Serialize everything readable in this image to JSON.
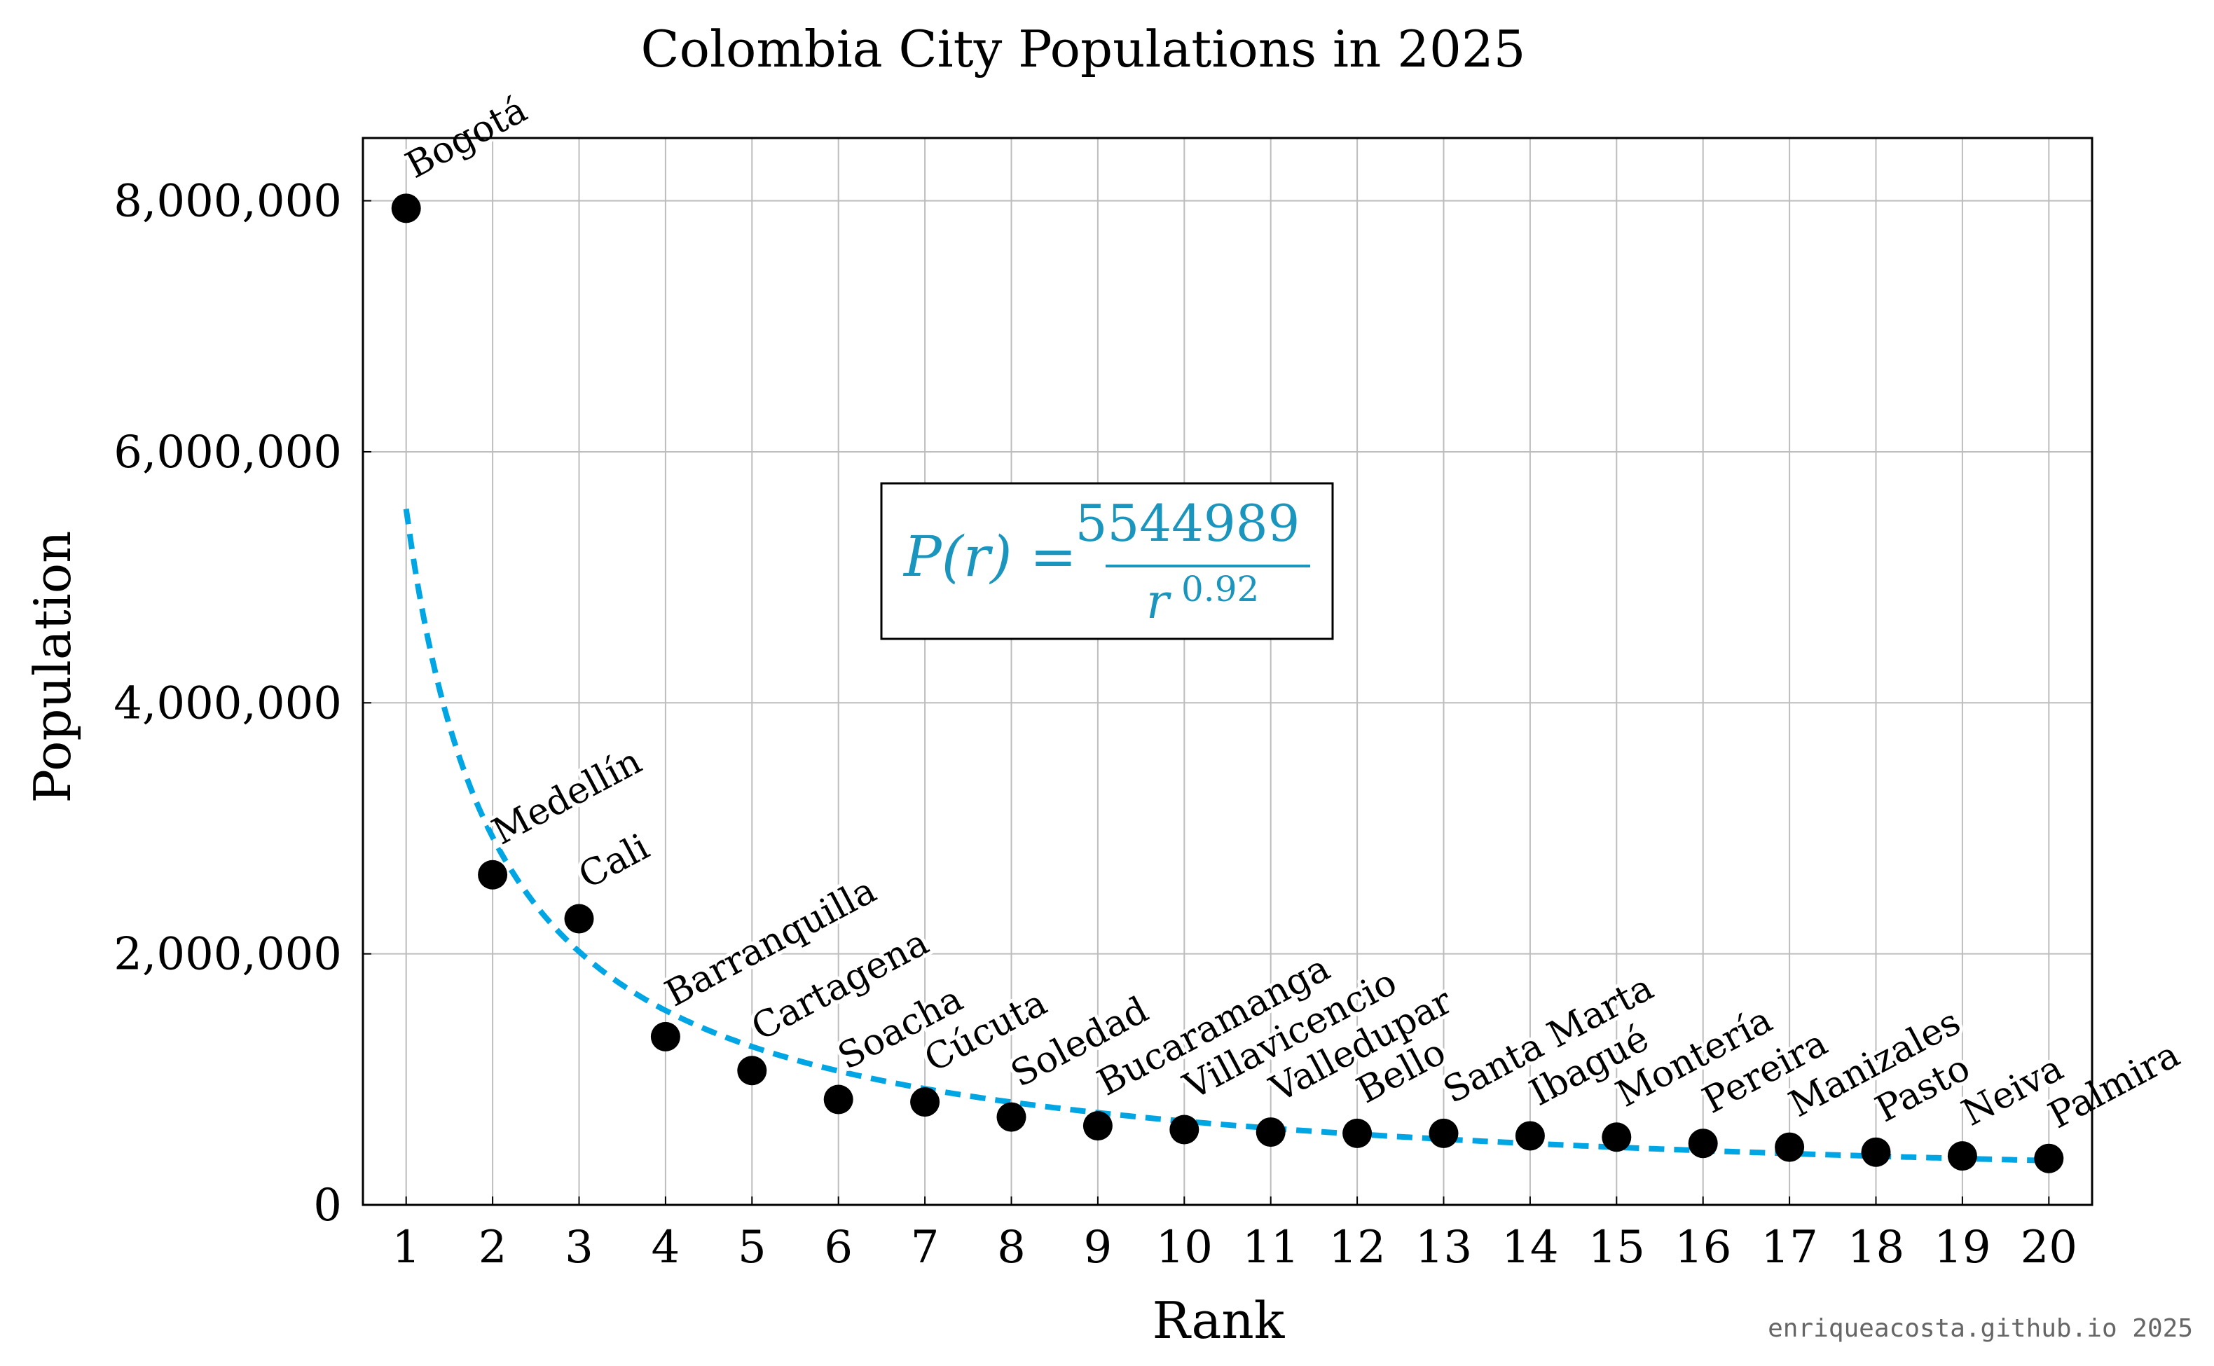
{
  "chart_data": {
    "type": "scatter",
    "title": "Colombia City Populations in 2025",
    "xlabel": "Rank",
    "ylabel": "Population",
    "xlim": [
      0.5,
      20.5
    ],
    "ylim": [
      0,
      8500000
    ],
    "xticks": [
      "1",
      "2",
      "3",
      "4",
      "5",
      "6",
      "7",
      "8",
      "9",
      "10",
      "11",
      "12",
      "13",
      "14",
      "15",
      "16",
      "17",
      "18",
      "19",
      "20"
    ],
    "yticks": [
      {
        "value": 0,
        "label": "0"
      },
      {
        "value": 2000000,
        "label": "2,000,000"
      },
      {
        "value": 4000000,
        "label": "4,000,000"
      },
      {
        "value": 6000000,
        "label": "6,000,000"
      },
      {
        "value": 8000000,
        "label": "8,000,000"
      }
    ],
    "grid": true,
    "points": [
      {
        "rank": 1,
        "city": "Bogotá",
        "population": 7940000
      },
      {
        "rank": 2,
        "city": "Medellín",
        "population": 2630000
      },
      {
        "rank": 3,
        "city": "Cali",
        "population": 2280000
      },
      {
        "rank": 4,
        "city": "Barranquilla",
        "population": 1340000
      },
      {
        "rank": 5,
        "city": "Cartagena",
        "population": 1070000
      },
      {
        "rank": 6,
        "city": "Soacha",
        "population": 840000
      },
      {
        "rank": 7,
        "city": "Cúcuta",
        "population": 820000
      },
      {
        "rank": 8,
        "city": "Soledad",
        "population": 700000
      },
      {
        "rank": 9,
        "city": "Bucaramanga",
        "population": 630000
      },
      {
        "rank": 10,
        "city": "Villavicencio",
        "population": 600000
      },
      {
        "rank": 11,
        "city": "Valledupar",
        "population": 580000
      },
      {
        "rank": 12,
        "city": "Bello",
        "population": 570000
      },
      {
        "rank": 13,
        "city": "Santa Marta",
        "population": 570000
      },
      {
        "rank": 14,
        "city": "Ibagué",
        "population": 550000
      },
      {
        "rank": 15,
        "city": "Montería",
        "population": 540000
      },
      {
        "rank": 16,
        "city": "Pereira",
        "population": 490000
      },
      {
        "rank": 17,
        "city": "Manizales",
        "population": 460000
      },
      {
        "rank": 18,
        "city": "Pasto",
        "population": 420000
      },
      {
        "rank": 19,
        "city": "Neiva",
        "population": 390000
      },
      {
        "rank": 20,
        "city": "Palmira",
        "population": 370000
      }
    ],
    "fit": {
      "coefficient": 5544989,
      "exponent": 0.92,
      "lhs": "P(r) =",
      "numerator": "5544989",
      "denominator_base": "r",
      "denominator_exponent": "0.92"
    },
    "colors": {
      "points": "#000000",
      "fit_line": "#00a6e3",
      "equation": "#1a95bd",
      "grid": "#bdbdbd"
    }
  },
  "footer": {
    "credit": "enriqueacosta.github.io 2025"
  }
}
